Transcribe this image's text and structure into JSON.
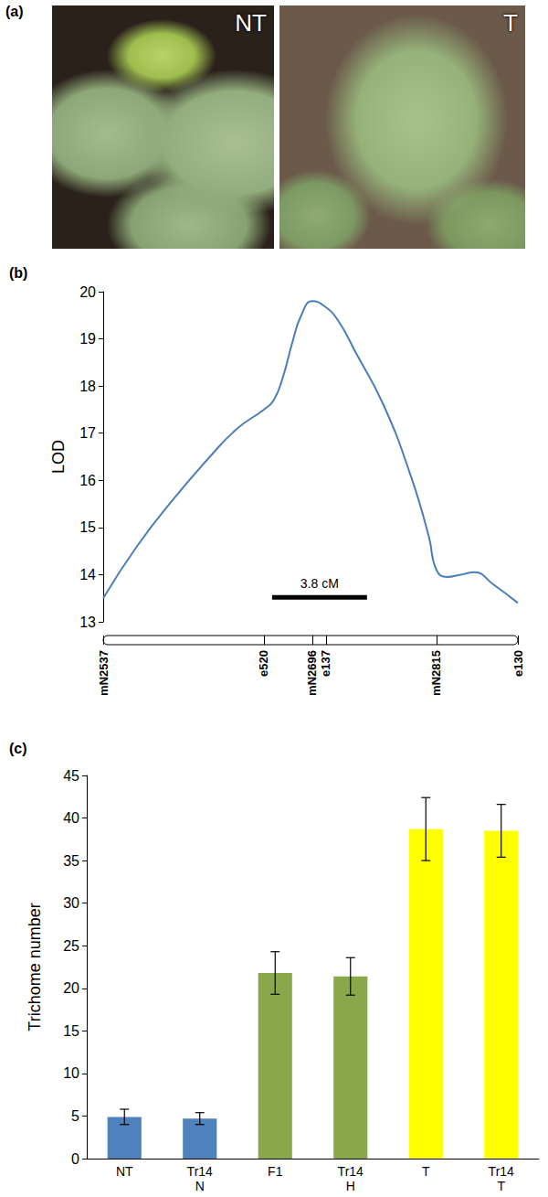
{
  "photos": {
    "label": "(a)",
    "images": [
      "NT",
      "T"
    ]
  },
  "chart_data": [
    {
      "type": "line",
      "title": "(b)",
      "y_label": "LOD",
      "color": "#4a7ebb",
      "grid": false,
      "x": [
        0,
        1.35,
        2.81,
        4.27,
        5.37,
        6.43,
        6.83,
        7.2,
        7.56,
        7.93,
        8.37,
        8.84,
        9.39,
        10.12,
        11.22,
        12.31,
        13.04,
        13.34,
        13.77,
        14.32,
        14.87,
        15.6,
        16.6
      ],
      "values": [
        13.5,
        14.6,
        15.6,
        16.5,
        17.1,
        17.5,
        17.7,
        18.2,
        18.9,
        19.5,
        19.8,
        19.7,
        19.4,
        18.7,
        17.6,
        16.1,
        14.8,
        14.1,
        13.95,
        14.0,
        14.05,
        13.8,
        13.4
      ],
      "xlim": [
        0,
        16.6
      ],
      "xticks": [
        {
          "value": 0,
          "label": "mN2537"
        },
        {
          "value": 6.43,
          "label": "e520"
        },
        {
          "value": 8.37,
          "label": "mN2696"
        },
        {
          "value": 8.92,
          "label": "e137"
        },
        {
          "value": 13.34,
          "label": "mN2815"
        },
        {
          "value": 16.6,
          "label": "e130"
        }
      ],
      "ylim": [
        13,
        20
      ],
      "yticks": [
        13,
        14,
        15,
        16,
        17,
        18,
        19,
        20
      ],
      "scale_bar": {
        "label": "3.8 cM",
        "from": 6.76,
        "to": 10.56,
        "y": 13.52
      }
    },
    {
      "type": "bar",
      "title": "(c)",
      "y_label": "Trichome number",
      "grid": false,
      "categories": [
        "NT",
        "Tr14\nN",
        "F1",
        "Tr14\nH",
        "T",
        "Tr14\nT"
      ],
      "values": [
        4.9,
        4.7,
        21.8,
        21.4,
        38.7,
        38.5
      ],
      "errors": [
        0.9,
        0.7,
        2.5,
        2.2,
        3.7,
        3.1
      ],
      "colors": [
        "#4f81bd",
        "#4f81bd",
        "#8aa84a",
        "#8aa84a",
        "#ffff00",
        "#ffff00"
      ],
      "ylim": [
        0,
        45
      ],
      "yticks": [
        0,
        5,
        10,
        15,
        20,
        25,
        30,
        35,
        40,
        45
      ]
    }
  ]
}
